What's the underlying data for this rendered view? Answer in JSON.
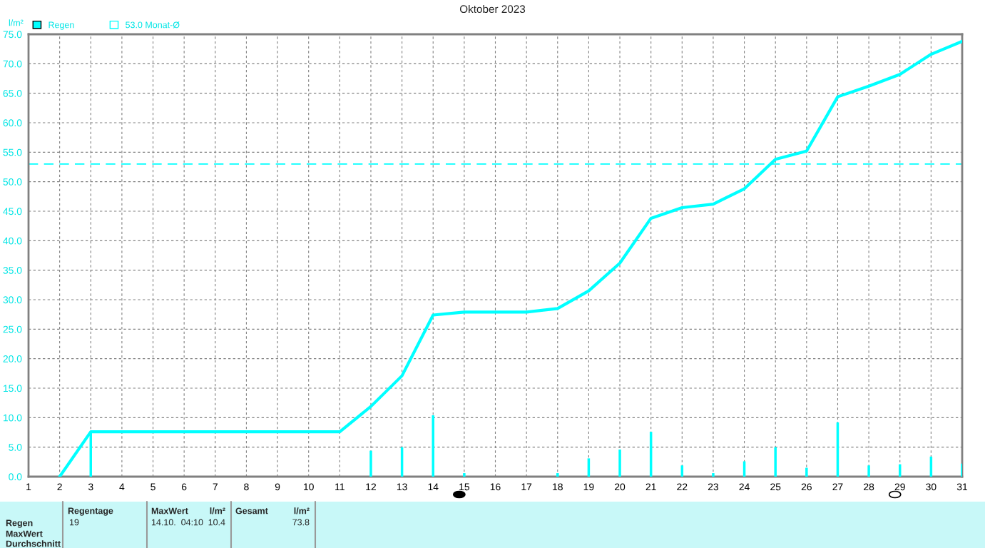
{
  "chart_data": {
    "type": "bar",
    "title": "Oktober 2023",
    "ylabel": "l/m²",
    "series": [
      {
        "name": "Regen",
        "color": "#00ffff",
        "x": [
          3,
          12,
          13,
          14,
          15,
          18,
          19,
          20,
          21,
          22,
          23,
          24,
          25,
          26,
          27,
          28,
          29,
          30,
          31
        ],
        "values": [
          7.6,
          4.4,
          5.0,
          10.4,
          0.6,
          0.6,
          3.1,
          4.6,
          7.6,
          1.9,
          0.6,
          2.6,
          5.0,
          1.5,
          9.2,
          1.9,
          2.1,
          3.4,
          2.2
        ]
      },
      {
        "type": "line",
        "color": "#00ffff",
        "x": [
          2,
          3,
          11,
          12,
          13,
          14,
          15,
          17,
          18,
          19,
          20,
          21,
          22,
          23,
          24,
          25,
          26,
          27,
          28,
          29,
          30,
          31
        ],
        "values": [
          0,
          7.6,
          7.6,
          11.9,
          17.1,
          27.4,
          27.9,
          27.9,
          28.5,
          31.5,
          36.2,
          43.8,
          45.6,
          46.2,
          48.8,
          53.8,
          55.2,
          64.4,
          66.2,
          68.2,
          71.6,
          73.8
        ]
      }
    ],
    "ref_lines": [
      {
        "axis": "y",
        "value": 53.0,
        "label": "53.0 Monat-Ø",
        "color": "#00ffff",
        "line_style": "dashed"
      }
    ],
    "xlim": [
      1,
      31
    ],
    "xticks": [
      1,
      2,
      3,
      4,
      5,
      6,
      7,
      8,
      9,
      10,
      11,
      12,
      13,
      14,
      15,
      16,
      17,
      18,
      19,
      20,
      21,
      22,
      23,
      24,
      25,
      26,
      27,
      28,
      29,
      30,
      31
    ],
    "ylim": [
      0,
      75
    ],
    "yticks": [
      {
        "value": 0,
        "label": "0.0"
      },
      {
        "value": 5,
        "label": "5.0"
      },
      {
        "value": 10,
        "label": "10.0"
      },
      {
        "value": 15,
        "label": "15.0"
      },
      {
        "value": 20,
        "label": "20.0"
      },
      {
        "value": 25,
        "label": "25.0"
      },
      {
        "value": 30,
        "label": "30.0"
      },
      {
        "value": 35,
        "label": "35.0"
      },
      {
        "value": 40,
        "label": "40.0"
      },
      {
        "value": 45,
        "label": "45.0"
      },
      {
        "value": 50,
        "label": "50.0"
      },
      {
        "value": 55,
        "label": "55.0"
      },
      {
        "value": 60,
        "label": "60.0"
      },
      {
        "value": 65,
        "label": "65.0"
      },
      {
        "value": 70,
        "label": "70.0"
      },
      {
        "value": 75,
        "label": "75.0"
      }
    ],
    "grid": true,
    "legend": "top left",
    "marker": "none",
    "line_style": "solid",
    "annotations": [
      "Regentage",
      "MaxWert",
      "l/m²",
      "Gesamt",
      "l/m²",
      "Regen",
      "MaxWert",
      "Durchschnitt",
      "19",
      "14.10.  04:10",
      "10.4",
      "73.8"
    ]
  }
}
